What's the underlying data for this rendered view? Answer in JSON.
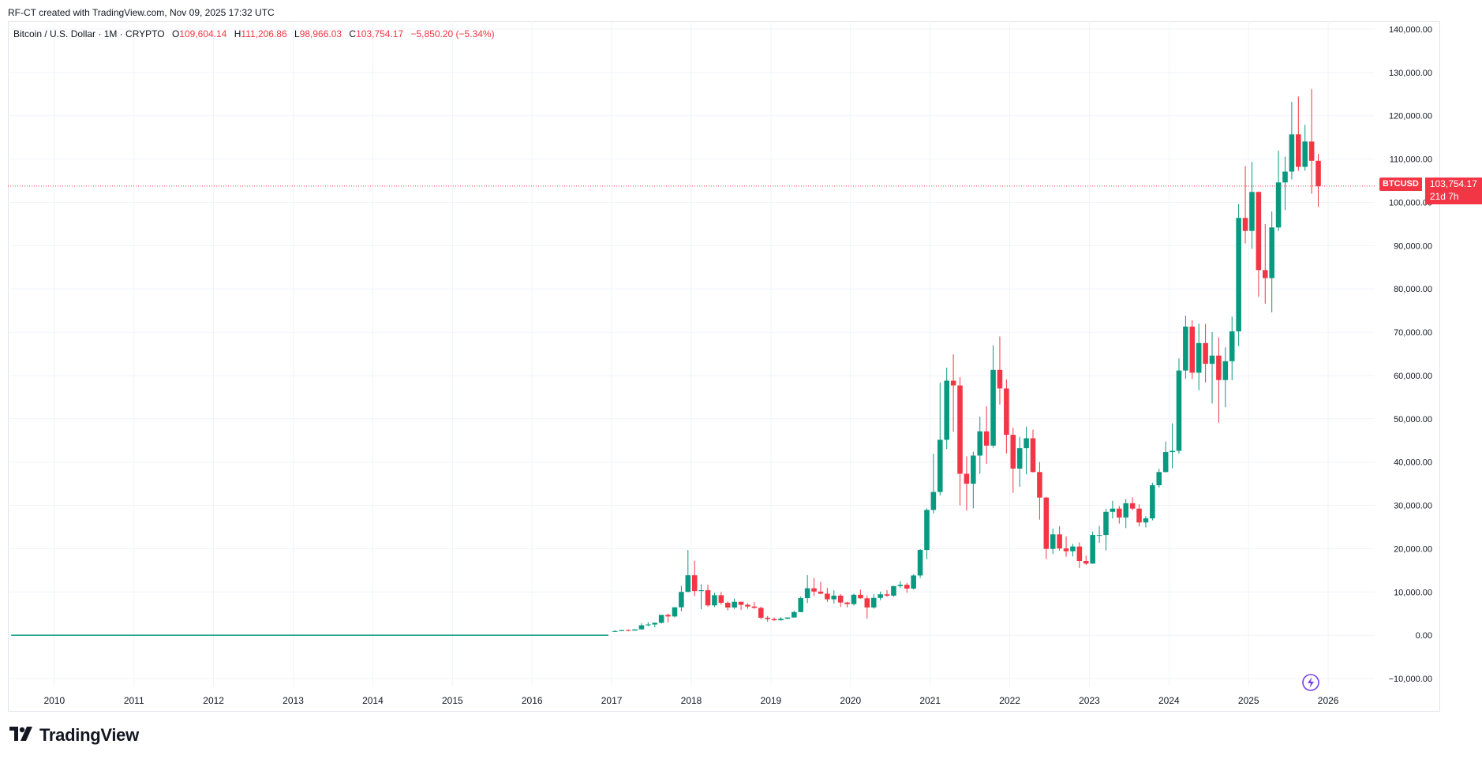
{
  "caption": "RF-CT created with TradingView.com, Nov 09, 2025 17:32 UTC",
  "legend": {
    "symbol": "Bitcoin / U.S. Dollar · 1M · CRYPTO",
    "o_label": "O",
    "o": "109,604.14",
    "h_label": "H",
    "h": "111,206.86",
    "l_label": "L",
    "l": "98,966.03",
    "c_label": "C",
    "c": "103,754.17",
    "change": "−5,850.20 (−5.34%)"
  },
  "price_tag": {
    "symbol": "BTCUSD",
    "price": "103,754.17",
    "countdown": "21d 7h"
  },
  "brand": {
    "name": "TradingView"
  },
  "colors": {
    "up": "#089981",
    "down": "#f23645",
    "grid": "#f0f3fa",
    "axis_text": "#131722",
    "last_price_line": "#f23645"
  },
  "icons": [
    "tradingview-logo-icon",
    "flash-icon"
  ],
  "chart_data": {
    "type": "candlestick",
    "title": "Bitcoin / U.S. Dollar · 1M · CRYPTO",
    "interval": "1M",
    "y_ticks": [
      "140,000.00",
      "130,000.00",
      "120,000.00",
      "110,000.00",
      "100,000.00",
      "90,000.00",
      "80,000.00",
      "70,000.00",
      "60,000.00",
      "50,000.00",
      "40,000.00",
      "30,000.00",
      "20,000.00",
      "10,000.00",
      "0.00",
      "−10,000.00"
    ],
    "y_tick_values": [
      140000,
      130000,
      120000,
      110000,
      100000,
      90000,
      80000,
      70000,
      60000,
      50000,
      40000,
      30000,
      20000,
      10000,
      0,
      -10000
    ],
    "x_ticks": [
      "2010",
      "2011",
      "2012",
      "2013",
      "2014",
      "2015",
      "2016",
      "2017",
      "2018",
      "2019",
      "2020",
      "2021",
      "2022",
      "2023",
      "2024",
      "2025",
      "2026"
    ],
    "ylim": [
      -10000,
      140000
    ],
    "x_start": "2009-06",
    "x_end": "2026-08",
    "last_price": 103754.17,
    "grid": true,
    "columns": [
      "month",
      "open",
      "high",
      "low",
      "close"
    ],
    "candles": [
      [
        "2017-01",
        965,
        1150,
        750,
        970
      ],
      [
        "2017-02",
        970,
        1200,
        920,
        1190
      ],
      [
        "2017-03",
        1190,
        1350,
        890,
        1080
      ],
      [
        "2017-04",
        1080,
        1350,
        1080,
        1350
      ],
      [
        "2017-05",
        1350,
        2760,
        1350,
        2300
      ],
      [
        "2017-06",
        2300,
        3000,
        2100,
        2480
      ],
      [
        "2017-07",
        2480,
        2950,
        1830,
        2870
      ],
      [
        "2017-08",
        2870,
        4480,
        2700,
        4700
      ],
      [
        "2017-09",
        4700,
        5000,
        2970,
        4340
      ],
      [
        "2017-10",
        4340,
        6470,
        4110,
        6450
      ],
      [
        "2017-11",
        6450,
        11400,
        5500,
        10000
      ],
      [
        "2017-12",
        10000,
        19700,
        10000,
        13850
      ],
      [
        "2018-01",
        13850,
        17200,
        9000,
        10200
      ],
      [
        "2018-02",
        10200,
        11800,
        6000,
        10400
      ],
      [
        "2018-03",
        10400,
        11700,
        6600,
        6900
      ],
      [
        "2018-04",
        6900,
        9800,
        6500,
        9250
      ],
      [
        "2018-05",
        9250,
        9990,
        7030,
        7500
      ],
      [
        "2018-06",
        7500,
        7780,
        5750,
        6400
      ],
      [
        "2018-07",
        6400,
        8500,
        6070,
        7730
      ],
      [
        "2018-08",
        7730,
        7760,
        5880,
        7030
      ],
      [
        "2018-09",
        7030,
        7400,
        6120,
        6630
      ],
      [
        "2018-10",
        6630,
        7680,
        6100,
        6320
      ],
      [
        "2018-11",
        6320,
        6600,
        3650,
        4040
      ],
      [
        "2018-12",
        4040,
        4440,
        3150,
        3740
      ],
      [
        "2019-01",
        3740,
        4090,
        3350,
        3460
      ],
      [
        "2019-02",
        3460,
        4200,
        3390,
        3810
      ],
      [
        "2019-03",
        3810,
        4120,
        3750,
        4100
      ],
      [
        "2019-04",
        4100,
        5650,
        4080,
        5350
      ],
      [
        "2019-05",
        5350,
        8950,
        5330,
        8580
      ],
      [
        "2019-06",
        8580,
        13880,
        7450,
        10850
      ],
      [
        "2019-07",
        10850,
        13200,
        9050,
        10090
      ],
      [
        "2019-08",
        10090,
        12320,
        9450,
        9600
      ],
      [
        "2019-09",
        9600,
        10950,
        7710,
        8300
      ],
      [
        "2019-10",
        8300,
        10370,
        7300,
        9150
      ],
      [
        "2019-11",
        9150,
        9500,
        6520,
        7560
      ],
      [
        "2019-12",
        7560,
        7750,
        6430,
        7190
      ],
      [
        "2020-01",
        7190,
        9600,
        6870,
        9350
      ],
      [
        "2020-02",
        9350,
        10520,
        8450,
        8540
      ],
      [
        "2020-03",
        8540,
        9200,
        3850,
        6410
      ],
      [
        "2020-04",
        6410,
        9460,
        6150,
        8630
      ],
      [
        "2020-05",
        8630,
        10080,
        8100,
        9450
      ],
      [
        "2020-06",
        9450,
        10400,
        8890,
        9140
      ],
      [
        "2020-07",
        9140,
        11450,
        8900,
        11350
      ],
      [
        "2020-08",
        11350,
        12480,
        10980,
        11650
      ],
      [
        "2020-09",
        11650,
        12080,
        9820,
        10780
      ],
      [
        "2020-10",
        10780,
        14100,
        10520,
        13800
      ],
      [
        "2020-11",
        13800,
        19900,
        13200,
        19700
      ],
      [
        "2020-12",
        19700,
        29300,
        17570,
        28950
      ],
      [
        "2021-01",
        28950,
        41950,
        28130,
        33100
      ],
      [
        "2021-02",
        33100,
        58350,
        32300,
        45150
      ],
      [
        "2021-03",
        45150,
        61800,
        43000,
        58800
      ],
      [
        "2021-04",
        58800,
        64900,
        47000,
        57700
      ],
      [
        "2021-05",
        57700,
        59600,
        30000,
        37300
      ],
      [
        "2021-06",
        37300,
        41300,
        28800,
        35000
      ],
      [
        "2021-07",
        35000,
        42400,
        29300,
        41500
      ],
      [
        "2021-08",
        41500,
        50500,
        37300,
        47100
      ],
      [
        "2021-09",
        47100,
        52900,
        39600,
        43800
      ],
      [
        "2021-10",
        43800,
        67000,
        43300,
        61300
      ],
      [
        "2021-11",
        61300,
        69000,
        53300,
        57000
      ],
      [
        "2021-12",
        57000,
        59100,
        42000,
        46300
      ],
      [
        "2022-01",
        46300,
        47950,
        32900,
        38500
      ],
      [
        "2022-02",
        38500,
        45800,
        34300,
        43200
      ],
      [
        "2022-03",
        43200,
        48200,
        37200,
        45500
      ],
      [
        "2022-04",
        45500,
        47450,
        37600,
        37700
      ],
      [
        "2022-05",
        37700,
        40000,
        26700,
        31800
      ],
      [
        "2022-06",
        31800,
        31950,
        17600,
        19950
      ],
      [
        "2022-07",
        19950,
        24650,
        18800,
        23300
      ],
      [
        "2022-08",
        23300,
        25200,
        19550,
        20050
      ],
      [
        "2022-09",
        20050,
        22800,
        18150,
        19400
      ],
      [
        "2022-10",
        19400,
        21100,
        18200,
        20500
      ],
      [
        "2022-11",
        20500,
        21450,
        15500,
        17150
      ],
      [
        "2022-12",
        17150,
        18400,
        16250,
        16550
      ],
      [
        "2023-01",
        16550,
        23950,
        16500,
        23150
      ],
      [
        "2023-02",
        23150,
        25250,
        21350,
        23150
      ],
      [
        "2023-03",
        23150,
        29200,
        19550,
        28500
      ],
      [
        "2023-04",
        28500,
        31050,
        26950,
        29250
      ],
      [
        "2023-05",
        29250,
        29850,
        25800,
        27200
      ],
      [
        "2023-06",
        27200,
        31450,
        24750,
        30500
      ],
      [
        "2023-07",
        30500,
        31850,
        28850,
        29250
      ],
      [
        "2023-08",
        29250,
        30250,
        25150,
        26050
      ],
      [
        "2023-09",
        26050,
        27500,
        24900,
        27000
      ],
      [
        "2023-10",
        27000,
        35250,
        26550,
        34650
      ],
      [
        "2023-11",
        34650,
        38450,
        34100,
        37700
      ],
      [
        "2023-12",
        37700,
        44750,
        37600,
        42300
      ],
      [
        "2024-01",
        42300,
        48950,
        38550,
        42600
      ],
      [
        "2024-02",
        42600,
        63950,
        41900,
        61150
      ],
      [
        "2024-03",
        61150,
        73800,
        59250,
        71300
      ],
      [
        "2024-04",
        71300,
        72750,
        59200,
        60650
      ],
      [
        "2024-05",
        60650,
        71950,
        56600,
        67500
      ],
      [
        "2024-06",
        67500,
        71950,
        58400,
        62700
      ],
      [
        "2024-07",
        62700,
        70050,
        53550,
        64600
      ],
      [
        "2024-08",
        64600,
        68800,
        49100,
        58950
      ],
      [
        "2024-09",
        58950,
        66500,
        52650,
        63300
      ],
      [
        "2024-10",
        63300,
        73600,
        58900,
        70200
      ],
      [
        "2024-11",
        70200,
        99600,
        66800,
        96400
      ],
      [
        "2024-12",
        96400,
        108350,
        90500,
        93400
      ],
      [
        "2025-01",
        93400,
        109350,
        89250,
        102400
      ],
      [
        "2025-02",
        102400,
        102500,
        78200,
        84350
      ],
      [
        "2025-03",
        84350,
        95000,
        76600,
        82500
      ],
      [
        "2025-04",
        82500,
        97900,
        74600,
        94200
      ],
      [
        "2025-05",
        94200,
        111950,
        93400,
        104600
      ],
      [
        "2025-06",
        104600,
        110550,
        98200,
        107100
      ],
      [
        "2025-07",
        107100,
        123200,
        105300,
        115700
      ],
      [
        "2025-08",
        115700,
        124450,
        107300,
        108200
      ],
      [
        "2025-09",
        108200,
        117900,
        107300,
        114050
      ],
      [
        "2025-10",
        114050,
        126200,
        102000,
        109600
      ],
      [
        "2025-11",
        109600,
        111200,
        98966,
        103754
      ]
    ]
  }
}
